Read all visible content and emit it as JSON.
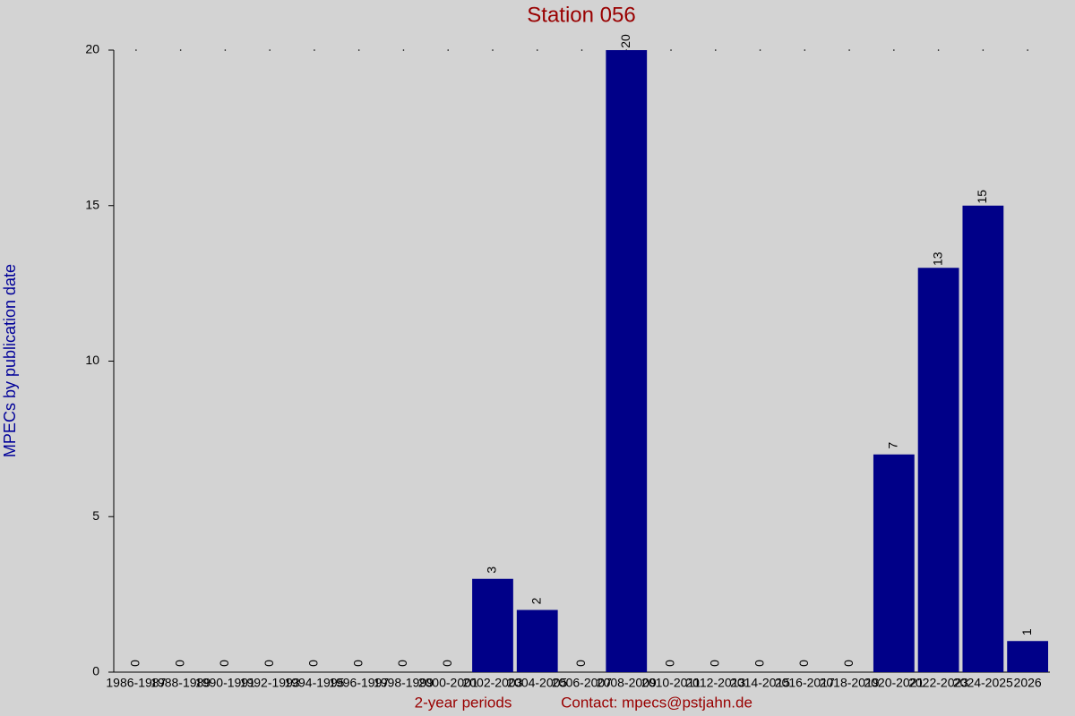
{
  "chart_data": {
    "type": "bar",
    "title": "Station 056",
    "y_label": "MPECs by publication date",
    "x_label": "2-year periods",
    "contact": "Contact: mpecs@pstjahn.de",
    "categories": [
      "1986-1987",
      "1988-1989",
      "1990-1991",
      "1992-1993",
      "1994-1995",
      "1996-1997",
      "1998-1999",
      "2000-2001",
      "2002-2003",
      "2004-2005",
      "2006-2007",
      "2008-2009",
      "2010-2011",
      "2012-2013",
      "2014-2015",
      "2016-2017",
      "2018-2019",
      "2020-2021",
      "2022-2023",
      "2024-2025",
      "2026"
    ],
    "values": [
      0,
      0,
      0,
      0,
      0,
      0,
      0,
      0,
      3,
      2,
      0,
      20,
      0,
      0,
      0,
      0,
      0,
      7,
      13,
      15,
      1
    ],
    "color": "#000088",
    "ylim": [
      0,
      20
    ],
    "yticks": [
      0,
      5,
      10,
      15,
      20
    ]
  }
}
